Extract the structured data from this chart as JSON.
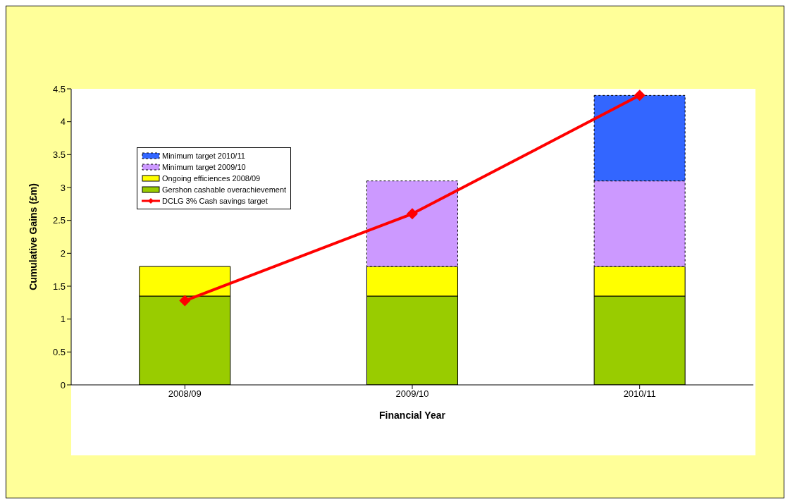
{
  "chart_data": {
    "type": "bar",
    "stacked": true,
    "xlabel": "Financial Year",
    "ylabel": "Cumulative Gains (£m)",
    "categories": [
      "2008/09",
      "2009/10",
      "2010/11"
    ],
    "series": [
      {
        "name": "Gershon cashable overachievement",
        "color": "#99cc00",
        "values": [
          1.35,
          1.35,
          1.35
        ]
      },
      {
        "name": "Ongoing efficiences 2008/09",
        "color": "#ffff00",
        "values": [
          0.45,
          0.45,
          0.45
        ]
      },
      {
        "name": "Minimum target 2009/10",
        "color": "#cc99ff",
        "values": [
          null,
          1.3,
          1.3
        ],
        "line_style": "dashed"
      },
      {
        "name": "Minimum target 2010/11",
        "color": "#3366ff",
        "values": [
          null,
          null,
          1.3
        ],
        "line_style": "dashed"
      },
      {
        "name": "DCLG 3% Cash savings target",
        "type": "line",
        "color": "#ff0000",
        "values": [
          1.28,
          2.6,
          4.4
        ],
        "marker": "diamond"
      }
    ],
    "ylim": [
      0,
      4.5
    ],
    "yticks": [
      0,
      0.5,
      1,
      1.5,
      2,
      2.5,
      3,
      3.5,
      4,
      4.5
    ],
    "grid": false,
    "legend": "top left"
  }
}
